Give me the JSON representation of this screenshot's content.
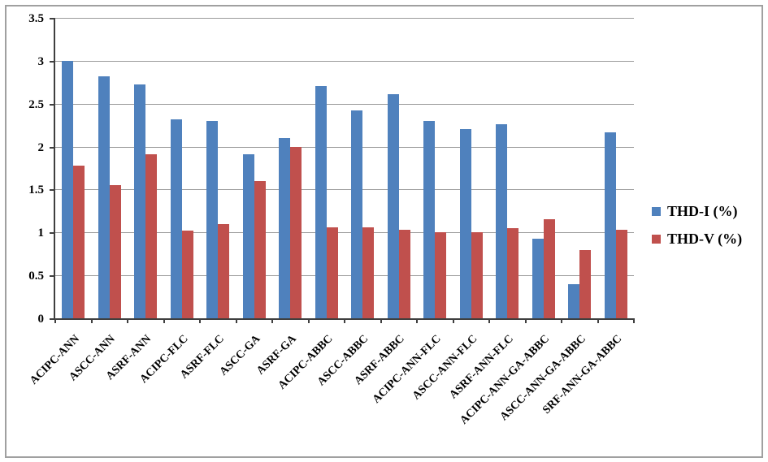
{
  "figure": {
    "background": "#ffffff",
    "border_color": "#a0a0a0",
    "gridline_color": "#9b9b9b",
    "axis_color": "#3f3f3f"
  },
  "chart_data": {
    "type": "bar",
    "title": "",
    "xlabel": "",
    "ylabel": "",
    "ylim": [
      0,
      3.5
    ],
    "ytick_step": 0.5,
    "ytick_labels": [
      "0",
      "0.5",
      "1",
      "1.5",
      "2",
      "2.5",
      "3",
      "3.5"
    ],
    "grid": true,
    "legend_position": "right",
    "categories": [
      "ACIPC-ANN",
      "ASCC-ANN",
      "ASRF-ANN",
      "ACIPC-FLC",
      "ASRF-FLC",
      "ASCC-GA",
      "ASRF-GA",
      "ACIPC-ABBC",
      "ASCC-ABBC",
      "ASRF-ABBC",
      "ACIPC-ANN-FLC",
      "ASCC-ANN-FLC",
      "ASRF-ANN-FLC",
      "ACIPC-ANN-GA-ABBC",
      "ASCC-ANN-GA-ABBC",
      "SRF-ANN-GA-ABBC"
    ],
    "series": [
      {
        "name": "THD-I (%)",
        "color": "#4F81BD",
        "values": [
          3.0,
          2.82,
          2.72,
          2.32,
          2.3,
          1.91,
          2.1,
          2.71,
          2.42,
          2.61,
          2.3,
          2.2,
          2.26,
          0.93,
          0.4,
          2.17
        ]
      },
      {
        "name": "THD-V (%)",
        "color": "#C0504D",
        "values": [
          1.78,
          1.55,
          1.91,
          1.02,
          1.1,
          1.6,
          2.0,
          1.06,
          1.06,
          1.03,
          1.0,
          1.0,
          1.05,
          1.15,
          0.79,
          1.03
        ]
      }
    ]
  }
}
